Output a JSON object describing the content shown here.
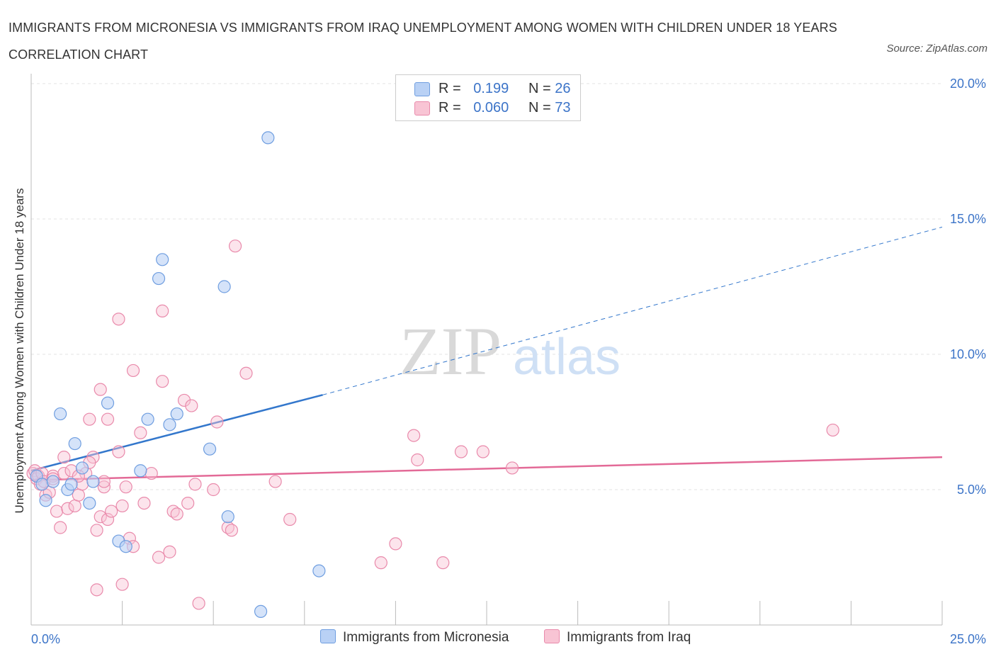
{
  "title": "IMMIGRANTS FROM MICRONESIA VS IMMIGRANTS FROM IRAQ UNEMPLOYMENT AMONG WOMEN WITH CHILDREN UNDER 18 YEARS CORRELATION CHART",
  "source": "Source: ZipAtlas.com",
  "watermark": {
    "zip": "ZIP",
    "atlas": "atlas"
  },
  "legend": {
    "r_label": "R =",
    "n_label": "N =",
    "micronesia": {
      "r": "0.199",
      "n": "26"
    },
    "iraq": {
      "r": "0.060",
      "n": "73"
    }
  },
  "colors": {
    "micronesia_fill": "#b9d1f5",
    "micronesia_stroke": "#6f9ee0",
    "micronesia_line": "#3377cc",
    "iraq_fill": "#f8c4d4",
    "iraq_stroke": "#e98aab",
    "iraq_line": "#e36a97",
    "axis_label": "#3c74c8"
  },
  "chart_data": {
    "type": "scatter",
    "xlabel": "",
    "ylabel": "Unemployment Among Women with Children Under 18 years",
    "xlim": [
      0,
      25
    ],
    "ylim": [
      0,
      20
    ],
    "x_tick_labels": [
      "0.0%",
      "25.0%"
    ],
    "y_ticks": [
      5,
      10,
      15,
      20
    ],
    "y_tick_labels": [
      "5.0%",
      "10.0%",
      "15.0%",
      "20.0%"
    ],
    "grid": true,
    "legend_position": "top-center",
    "series": [
      {
        "name": "Immigrants from Micronesia",
        "points": [
          [
            0.15,
            5.5
          ],
          [
            0.3,
            5.2
          ],
          [
            0.4,
            4.6
          ],
          [
            0.6,
            5.3
          ],
          [
            0.8,
            7.8
          ],
          [
            1.0,
            5.0
          ],
          [
            1.1,
            5.2
          ],
          [
            1.2,
            6.7
          ],
          [
            1.4,
            5.8
          ],
          [
            1.6,
            4.5
          ],
          [
            1.7,
            5.3
          ],
          [
            2.1,
            8.2
          ],
          [
            2.4,
            3.1
          ],
          [
            2.6,
            2.9
          ],
          [
            3.0,
            5.7
          ],
          [
            3.2,
            7.6
          ],
          [
            3.5,
            12.8
          ],
          [
            3.6,
            13.5
          ],
          [
            3.8,
            7.4
          ],
          [
            4.0,
            7.8
          ],
          [
            4.9,
            6.5
          ],
          [
            5.3,
            12.5
          ],
          [
            5.4,
            4.0
          ],
          [
            6.3,
            0.5
          ],
          [
            6.5,
            18.0
          ],
          [
            7.9,
            2.0
          ]
        ],
        "trend": {
          "x": [
            0,
            8
          ],
          "y": [
            5.7,
            8.5
          ],
          "extended_to": [
            25,
            14.7
          ]
        }
      },
      {
        "name": "Immigrants from Iraq",
        "points": [
          [
            0.05,
            5.6
          ],
          [
            0.1,
            5.7
          ],
          [
            0.15,
            5.4
          ],
          [
            0.2,
            5.5
          ],
          [
            0.25,
            5.2
          ],
          [
            0.3,
            5.6
          ],
          [
            0.35,
            5.3
          ],
          [
            0.4,
            4.8
          ],
          [
            0.5,
            4.9
          ],
          [
            0.6,
            5.5
          ],
          [
            0.7,
            4.2
          ],
          [
            0.8,
            3.6
          ],
          [
            0.9,
            5.6
          ],
          [
            1.0,
            4.3
          ],
          [
            1.1,
            5.7
          ],
          [
            1.2,
            4.4
          ],
          [
            1.3,
            4.8
          ],
          [
            1.4,
            5.2
          ],
          [
            1.5,
            5.6
          ],
          [
            1.6,
            7.6
          ],
          [
            1.7,
            6.2
          ],
          [
            1.8,
            3.5
          ],
          [
            1.9,
            4.0
          ],
          [
            2.0,
            5.1
          ],
          [
            2.1,
            3.9
          ],
          [
            2.2,
            4.2
          ],
          [
            2.4,
            6.4
          ],
          [
            2.5,
            1.5
          ],
          [
            2.6,
            5.1
          ],
          [
            2.7,
            3.2
          ],
          [
            2.8,
            2.9
          ],
          [
            2.8,
            9.4
          ],
          [
            3.0,
            7.1
          ],
          [
            3.1,
            4.5
          ],
          [
            3.3,
            5.6
          ],
          [
            3.5,
            2.5
          ],
          [
            3.6,
            9.0
          ],
          [
            3.8,
            2.7
          ],
          [
            3.9,
            4.2
          ],
          [
            4.0,
            4.1
          ],
          [
            4.2,
            8.3
          ],
          [
            4.3,
            4.5
          ],
          [
            4.4,
            8.1
          ],
          [
            4.5,
            5.2
          ],
          [
            4.6,
            0.8
          ],
          [
            5.0,
            5.0
          ],
          [
            5.1,
            7.5
          ],
          [
            5.4,
            3.6
          ],
          [
            5.5,
            3.5
          ],
          [
            5.6,
            14.0
          ],
          [
            5.9,
            9.3
          ],
          [
            6.7,
            5.3
          ],
          [
            7.1,
            3.9
          ],
          [
            9.6,
            2.3
          ],
          [
            10.0,
            3.0
          ],
          [
            10.5,
            7.0
          ],
          [
            10.6,
            6.1
          ],
          [
            11.3,
            2.3
          ],
          [
            11.8,
            6.4
          ],
          [
            12.4,
            6.4
          ],
          [
            13.2,
            5.8
          ],
          [
            22.0,
            7.2
          ],
          [
            3.6,
            11.6
          ],
          [
            2.4,
            11.3
          ],
          [
            1.9,
            8.7
          ],
          [
            2.1,
            7.6
          ],
          [
            0.9,
            6.2
          ],
          [
            1.6,
            6.0
          ],
          [
            2.5,
            4.4
          ],
          [
            1.3,
            5.5
          ],
          [
            0.6,
            5.4
          ],
          [
            2.0,
            5.3
          ],
          [
            1.8,
            1.3
          ]
        ],
        "trend": {
          "x": [
            0,
            25
          ],
          "y": [
            5.35,
            6.2
          ]
        }
      }
    ]
  }
}
